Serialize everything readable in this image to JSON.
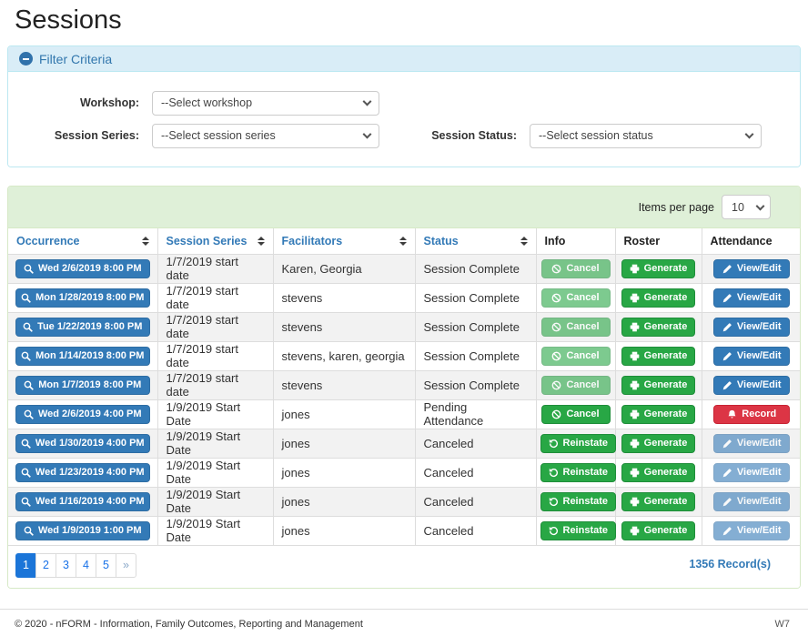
{
  "page": {
    "title": "Sessions"
  },
  "filter": {
    "title": "Filter Criteria",
    "collapse_icon": "minus-circle-icon",
    "workshop": {
      "label": "Workshop:",
      "value": "--Select workshop"
    },
    "session_series": {
      "label": "Session Series:",
      "value": "--Select session series"
    },
    "session_status": {
      "label": "Session Status:",
      "value": "--Select session status"
    }
  },
  "table": {
    "items_per_page": {
      "label": "Items per page",
      "value": "10"
    },
    "columns": [
      {
        "label": "Occurrence",
        "sortable": true
      },
      {
        "label": "Session Series",
        "sortable": true
      },
      {
        "label": "Facilitators",
        "sortable": true
      },
      {
        "label": "Status",
        "sortable": true
      },
      {
        "label": "Info",
        "sortable": false
      },
      {
        "label": "Roster",
        "sortable": false
      },
      {
        "label": "Attendance",
        "sortable": false
      }
    ],
    "rows": [
      {
        "occurrence": "Wed 2/6/2019 8:00 PM",
        "session_series": "1/7/2019 start date",
        "facilitators": "Karen, Georgia",
        "status": "Session Complete",
        "info": {
          "label": "Cancel",
          "icon": "ban-icon",
          "disabled": true
        },
        "roster": {
          "label": "Generate",
          "icon": "print-icon",
          "disabled": false
        },
        "attendance": {
          "label": "View/Edit",
          "icon": "pencil-icon",
          "variant": "primary",
          "disabled": false
        }
      },
      {
        "occurrence": "Mon 1/28/2019 8:00 PM",
        "session_series": "1/7/2019 start date",
        "facilitators": "stevens",
        "status": "Session Complete",
        "info": {
          "label": "Cancel",
          "icon": "ban-icon",
          "disabled": true
        },
        "roster": {
          "label": "Generate",
          "icon": "print-icon",
          "disabled": false
        },
        "attendance": {
          "label": "View/Edit",
          "icon": "pencil-icon",
          "variant": "primary",
          "disabled": false
        }
      },
      {
        "occurrence": "Tue 1/22/2019 8:00 PM",
        "session_series": "1/7/2019 start date",
        "facilitators": "stevens",
        "status": "Session Complete",
        "info": {
          "label": "Cancel",
          "icon": "ban-icon",
          "disabled": true
        },
        "roster": {
          "label": "Generate",
          "icon": "print-icon",
          "disabled": false
        },
        "attendance": {
          "label": "View/Edit",
          "icon": "pencil-icon",
          "variant": "primary",
          "disabled": false
        }
      },
      {
        "occurrence": "Mon 1/14/2019 8:00 PM",
        "session_series": "1/7/2019 start date",
        "facilitators": "stevens, karen, georgia",
        "status": "Session Complete",
        "info": {
          "label": "Cancel",
          "icon": "ban-icon",
          "disabled": true
        },
        "roster": {
          "label": "Generate",
          "icon": "print-icon",
          "disabled": false
        },
        "attendance": {
          "label": "View/Edit",
          "icon": "pencil-icon",
          "variant": "primary",
          "disabled": false
        }
      },
      {
        "occurrence": "Mon 1/7/2019 8:00 PM",
        "session_series": "1/7/2019 start date",
        "facilitators": "stevens",
        "status": "Session Complete",
        "info": {
          "label": "Cancel",
          "icon": "ban-icon",
          "disabled": true
        },
        "roster": {
          "label": "Generate",
          "icon": "print-icon",
          "disabled": false
        },
        "attendance": {
          "label": "View/Edit",
          "icon": "pencil-icon",
          "variant": "primary",
          "disabled": false
        }
      },
      {
        "occurrence": "Wed 2/6/2019 4:00 PM",
        "session_series": "1/9/2019 Start Date",
        "facilitators": "jones",
        "status": "Pending Attendance",
        "info": {
          "label": "Cancel",
          "icon": "ban-icon",
          "disabled": false
        },
        "roster": {
          "label": "Generate",
          "icon": "print-icon",
          "disabled": false
        },
        "attendance": {
          "label": "Record",
          "icon": "bell-icon",
          "variant": "danger",
          "disabled": false
        }
      },
      {
        "occurrence": "Wed 1/30/2019 4:00 PM",
        "session_series": "1/9/2019 Start Date",
        "facilitators": "jones",
        "status": "Canceled",
        "info": {
          "label": "Reinstate",
          "icon": "undo-icon",
          "disabled": false
        },
        "roster": {
          "label": "Generate",
          "icon": "print-icon",
          "disabled": false
        },
        "attendance": {
          "label": "View/Edit",
          "icon": "pencil-icon",
          "variant": "primary",
          "disabled": true
        }
      },
      {
        "occurrence": "Wed 1/23/2019 4:00 PM",
        "session_series": "1/9/2019 Start Date",
        "facilitators": "jones",
        "status": "Canceled",
        "info": {
          "label": "Reinstate",
          "icon": "undo-icon",
          "disabled": false
        },
        "roster": {
          "label": "Generate",
          "icon": "print-icon",
          "disabled": false
        },
        "attendance": {
          "label": "View/Edit",
          "icon": "pencil-icon",
          "variant": "primary",
          "disabled": true
        }
      },
      {
        "occurrence": "Wed 1/16/2019 4:00 PM",
        "session_series": "1/9/2019 Start Date",
        "facilitators": "jones",
        "status": "Canceled",
        "info": {
          "label": "Reinstate",
          "icon": "undo-icon",
          "disabled": false
        },
        "roster": {
          "label": "Generate",
          "icon": "print-icon",
          "disabled": false
        },
        "attendance": {
          "label": "View/Edit",
          "icon": "pencil-icon",
          "variant": "primary",
          "disabled": true
        }
      },
      {
        "occurrence": "Wed 1/9/2019 1:00 PM",
        "session_series": "1/9/2019 Start Date",
        "facilitators": "jones",
        "status": "Canceled",
        "info": {
          "label": "Reinstate",
          "icon": "undo-icon",
          "disabled": false
        },
        "roster": {
          "label": "Generate",
          "icon": "print-icon",
          "disabled": false
        },
        "attendance": {
          "label": "View/Edit",
          "icon": "pencil-icon",
          "variant": "primary",
          "disabled": true
        }
      }
    ],
    "occurrence_icon": "search-icon",
    "pagination": {
      "pages": [
        "1",
        "2",
        "3",
        "4",
        "5",
        "»"
      ],
      "active": "1"
    },
    "record_count": "1356 Record(s)"
  },
  "footer": {
    "copyright": "© 2020 - nFORM - Information, Family Outcomes, Reporting and Management",
    "environment": "W7"
  },
  "colors": {
    "primary_blue": "#337ab7",
    "success_green": "#28a745",
    "danger_red": "#dc3545",
    "panel_green_bg": "#dff0d8",
    "panel_blue_bg": "#d9edf7",
    "pagination_active": "#1b75d8"
  }
}
